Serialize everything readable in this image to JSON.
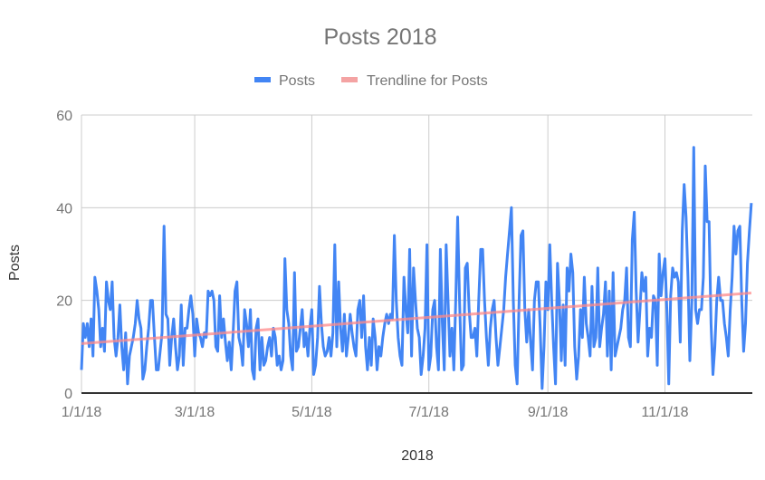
{
  "chart_data": {
    "type": "line",
    "title": "Posts 2018",
    "xlabel": "2018",
    "ylabel": "Posts",
    "ylim": [
      0,
      60
    ],
    "y_ticks": [
      "0",
      "20",
      "40",
      "60"
    ],
    "x_ticks": [
      "1/1/18",
      "3/1/18",
      "5/1/18",
      "7/1/18",
      "9/1/18",
      "11/1/18"
    ],
    "x_range": [
      "1/1/18",
      "12/16/18"
    ],
    "x_step": "1 day",
    "grid": true,
    "legend_position": "top",
    "series": [
      {
        "name": "Posts",
        "color": "#4285f4",
        "values": [
          5,
          15,
          12,
          15,
          10,
          16,
          8,
          25,
          22,
          18,
          10,
          14,
          9,
          24,
          20,
          18,
          24,
          12,
          8,
          12,
          19,
          10,
          5,
          13,
          2,
          8,
          10,
          12,
          15,
          20,
          16,
          14,
          3,
          5,
          10,
          14,
          20,
          20,
          12,
          5,
          5,
          9,
          13,
          36,
          17,
          16,
          6,
          12,
          16,
          10,
          5,
          8,
          19,
          6,
          14,
          14,
          18,
          21,
          17,
          8,
          16,
          13,
          12,
          10,
          13,
          12,
          22,
          21,
          22,
          20,
          10,
          9,
          21,
          12,
          16,
          11,
          7,
          11,
          5,
          13,
          22,
          24,
          12,
          10,
          6,
          18,
          15,
          10,
          18,
          5,
          3,
          14,
          16,
          5,
          12,
          6,
          7,
          10,
          12,
          8,
          14,
          12,
          6,
          8,
          5,
          7,
          29,
          18,
          15,
          8,
          5,
          26,
          9,
          10,
          14,
          18,
          10,
          13,
          8,
          14,
          18,
          4,
          6,
          12,
          23,
          15,
          10,
          8,
          9,
          12,
          8,
          13,
          32,
          10,
          24,
          14,
          9,
          17,
          8,
          12,
          17,
          13,
          10,
          8,
          18,
          20,
          12,
          21,
          10,
          5,
          12,
          6,
          16,
          12,
          5,
          10,
          8,
          12,
          15,
          17,
          15,
          17,
          16,
          34,
          20,
          12,
          8,
          6,
          25,
          18,
          13,
          31,
          8,
          27,
          20,
          14,
          12,
          4,
          8,
          14,
          32,
          5,
          8,
          18,
          20,
          10,
          5,
          31,
          15,
          5,
          32,
          20,
          8,
          14,
          5,
          20,
          38,
          20,
          5,
          6,
          27,
          28,
          18,
          12,
          12,
          14,
          8,
          20,
          31,
          31,
          20,
          12,
          6,
          14,
          18,
          20,
          12,
          6,
          10,
          14,
          18,
          25,
          30,
          35,
          40,
          20,
          6,
          2,
          20,
          34,
          35,
          18,
          11,
          18,
          11,
          5,
          20,
          24,
          24,
          14,
          1,
          10,
          24,
          18,
          32,
          20,
          10,
          2,
          28,
          20,
          7,
          19,
          6,
          27,
          22,
          30,
          26,
          10,
          3,
          8,
          18,
          12,
          25,
          15,
          12,
          8,
          23,
          10,
          12,
          27,
          10,
          14,
          17,
          24,
          8,
          22,
          5,
          26,
          8,
          10,
          12,
          14,
          18,
          20,
          27,
          12,
          10,
          33,
          39,
          22,
          11,
          18,
          26,
          22,
          25,
          8,
          14,
          12,
          21,
          20,
          6,
          30,
          21,
          26,
          29,
          18,
          2,
          21,
          27,
          25,
          26,
          24,
          11,
          35,
          45,
          38,
          25,
          7,
          20,
          53,
          18,
          15,
          18,
          18,
          25,
          49,
          37,
          37,
          15,
          4,
          10,
          20,
          25,
          20,
          20,
          15,
          12,
          8,
          18,
          25,
          36,
          30,
          35,
          36,
          20,
          9,
          15,
          28,
          35,
          41
        ]
      },
      {
        "name": "Trendline for Posts",
        "color": "#f4a3a3",
        "kind": "linear trendline"
      }
    ]
  }
}
